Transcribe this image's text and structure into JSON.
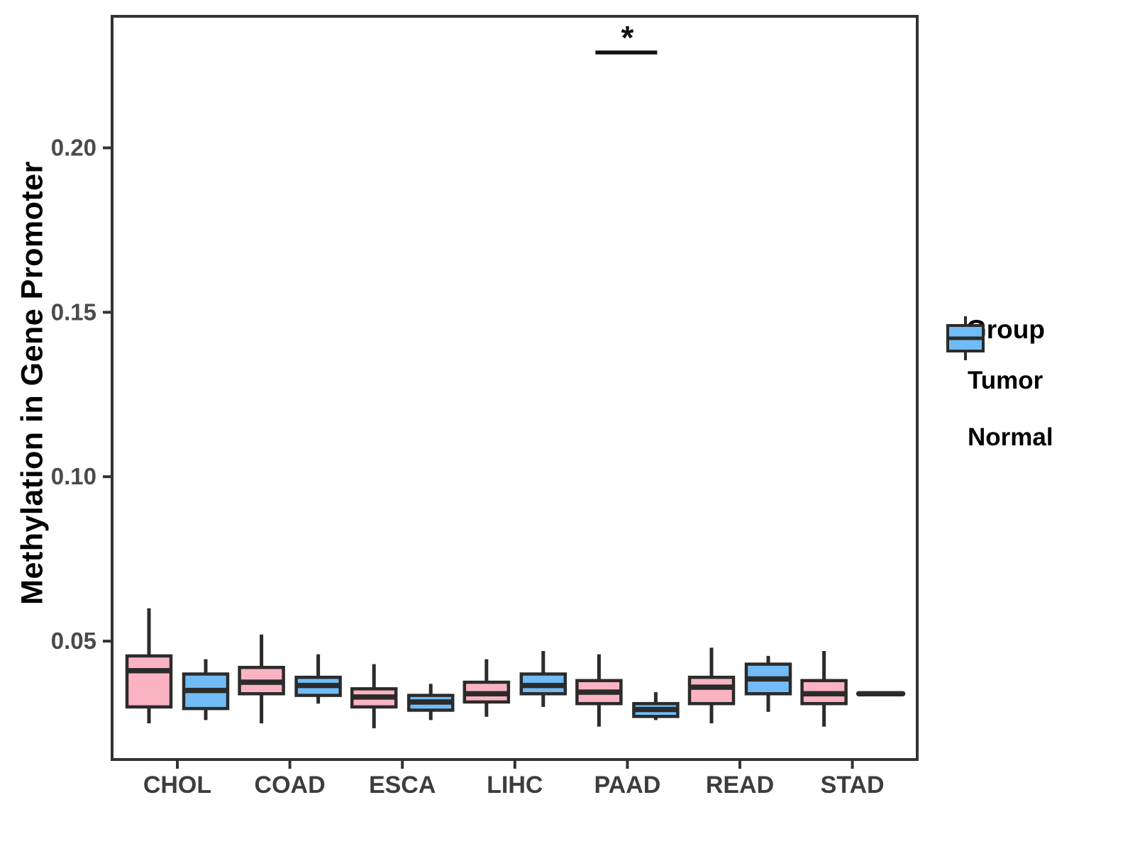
{
  "chart_data": {
    "type": "grouped_boxplot",
    "title": "",
    "xlabel": "",
    "ylabel": "Methylation in Gene Promoter",
    "categories": [
      "CHOL",
      "COAD",
      "ESCA",
      "LIHC",
      "PAAD",
      "READ",
      "STAD"
    ],
    "y_ticks": [
      {
        "label": "0.05",
        "value": 0.05
      },
      {
        "label": "0.10",
        "value": 0.1
      },
      {
        "label": "0.15",
        "value": 0.15
      },
      {
        "label": "0.20",
        "value": 0.2
      }
    ],
    "ylim": [
      0.014,
      0.24
    ],
    "grid": false,
    "legend": {
      "title": "Group",
      "position": "right",
      "entries": [
        {
          "label": "Tumor",
          "color": "#FBB3C2"
        },
        {
          "label": "Normal",
          "color": "#71BCF6"
        }
      ]
    },
    "series": [
      {
        "name": "Tumor",
        "color": "#FBB3C2",
        "boxes": [
          {
            "category": "CHOL",
            "lo": 0.025,
            "q1": 0.03,
            "med": 0.041,
            "q3": 0.0455,
            "hi": 0.06
          },
          {
            "category": "COAD",
            "lo": 0.025,
            "q1": 0.034,
            "med": 0.0375,
            "q3": 0.042,
            "hi": 0.052
          },
          {
            "category": "ESCA",
            "lo": 0.0235,
            "q1": 0.03,
            "med": 0.033,
            "q3": 0.0355,
            "hi": 0.043
          },
          {
            "category": "LIHC",
            "lo": 0.027,
            "q1": 0.0315,
            "med": 0.034,
            "q3": 0.0375,
            "hi": 0.0445
          },
          {
            "category": "PAAD",
            "lo": 0.024,
            "q1": 0.031,
            "med": 0.0345,
            "q3": 0.038,
            "hi": 0.046
          },
          {
            "category": "READ",
            "lo": 0.025,
            "q1": 0.031,
            "med": 0.036,
            "q3": 0.039,
            "hi": 0.048
          },
          {
            "category": "STAD",
            "lo": 0.024,
            "q1": 0.031,
            "med": 0.034,
            "q3": 0.038,
            "hi": 0.047
          }
        ]
      },
      {
        "name": "Normal",
        "color": "#71BCF6",
        "boxes": [
          {
            "category": "CHOL",
            "lo": 0.026,
            "q1": 0.0295,
            "med": 0.035,
            "q3": 0.04,
            "hi": 0.0445
          },
          {
            "category": "COAD",
            "lo": 0.031,
            "q1": 0.0335,
            "med": 0.0365,
            "q3": 0.039,
            "hi": 0.046
          },
          {
            "category": "ESCA",
            "lo": 0.026,
            "q1": 0.029,
            "med": 0.0315,
            "q3": 0.0335,
            "hi": 0.037
          },
          {
            "category": "LIHC",
            "lo": 0.03,
            "q1": 0.034,
            "med": 0.0365,
            "q3": 0.04,
            "hi": 0.047
          },
          {
            "category": "PAAD",
            "lo": 0.026,
            "q1": 0.0271,
            "med": 0.0292,
            "q3": 0.031,
            "hi": 0.0345
          },
          {
            "category": "READ",
            "lo": 0.0285,
            "q1": 0.034,
            "med": 0.0385,
            "q3": 0.043,
            "hi": 0.0455
          },
          {
            "category": "STAD",
            "lo": 0.034,
            "q1": 0.034,
            "med": 0.034,
            "q3": 0.034,
            "hi": 0.034
          }
        ]
      }
    ],
    "annotation": {
      "label": "*",
      "category": "PAAD",
      "line_y_value": 0.229,
      "spans": "Tumor-to-Normal"
    }
  },
  "colors": {
    "background": "#FFFFFF",
    "panel_border": "#333333",
    "box_stroke": "#2B2B2B",
    "tumor_fill": "#FBB3C2",
    "normal_fill": "#71BCF6",
    "y_tick_text": "#4A4A4A",
    "x_tick_text": "#3D3D3D",
    "axis_title_text": "#000000"
  }
}
